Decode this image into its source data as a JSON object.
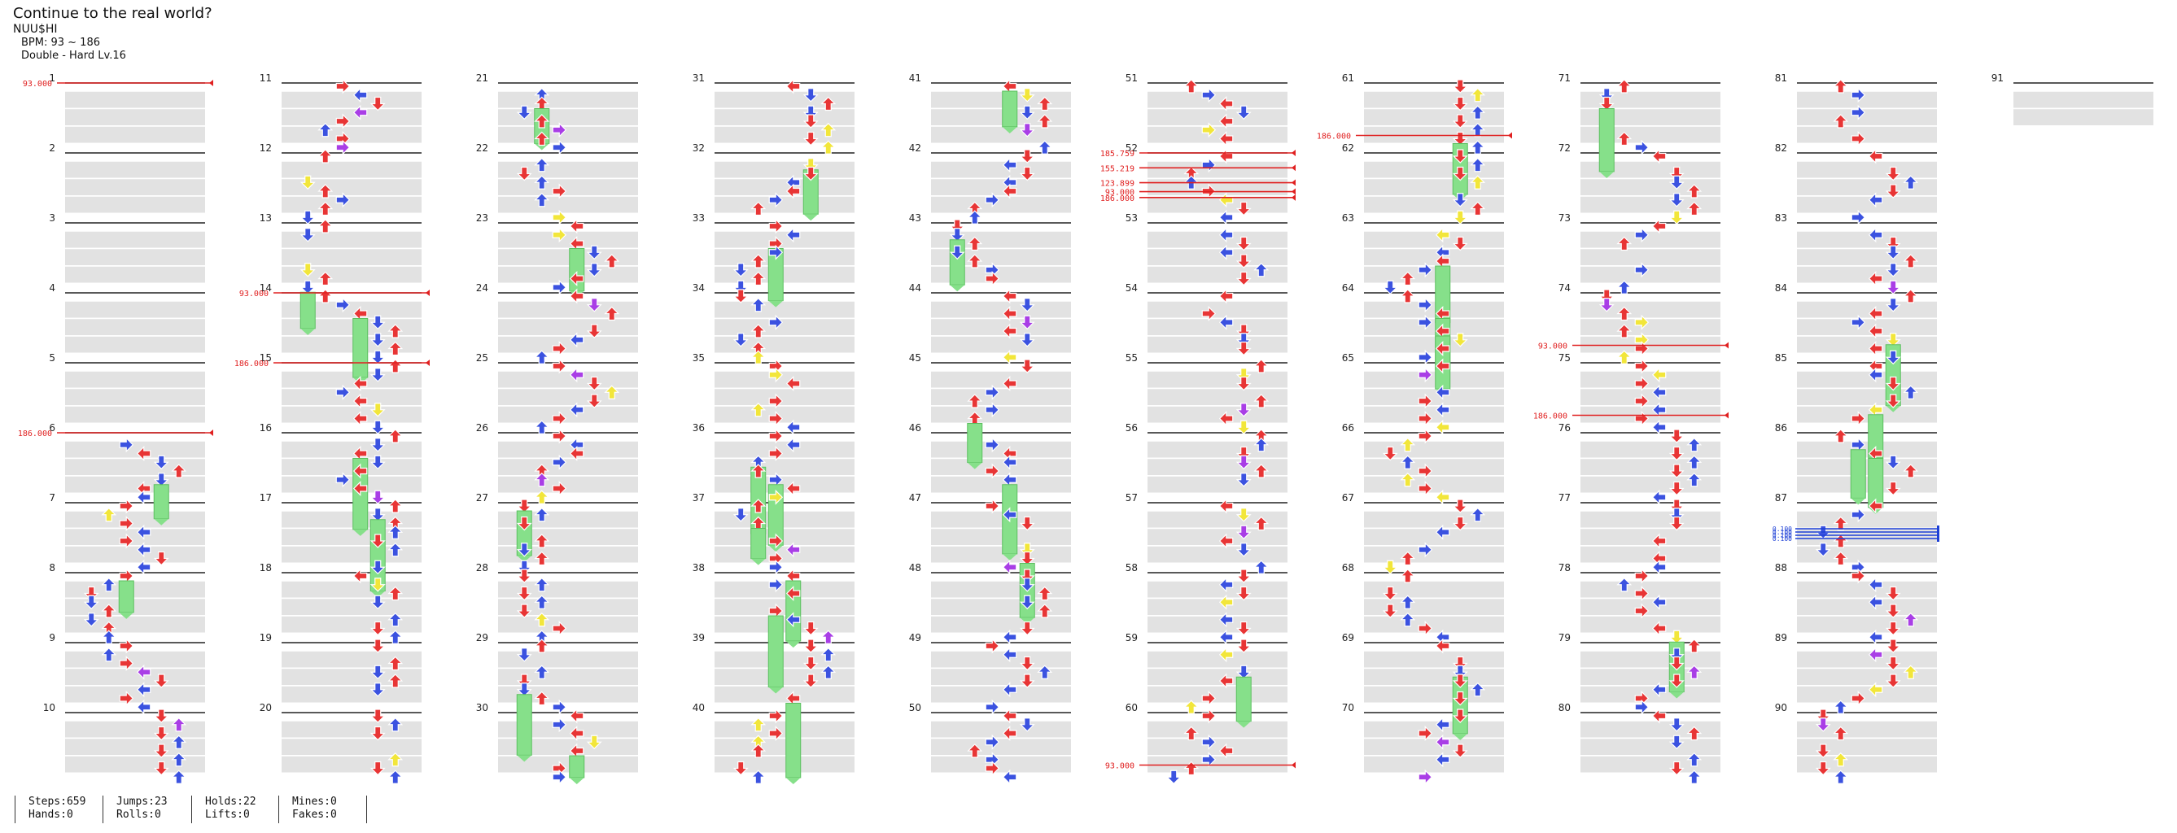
{
  "song": {
    "title": "Continue to the real world?",
    "artist": "NUU$HI",
    "bpm": "BPM: 93 ~ 186",
    "difficulty": "Double - Hard Lv.16"
  },
  "measure_numbers": [
    "1",
    "2",
    "3",
    "4",
    "5",
    "6",
    "7",
    "8",
    "9",
    "10",
    "11",
    "12",
    "13",
    "14",
    "15",
    "16",
    "17",
    "18",
    "19",
    "20",
    "21",
    "22",
    "23",
    "24",
    "25",
    "26",
    "27",
    "28",
    "29",
    "30",
    "31",
    "32",
    "33",
    "34",
    "35",
    "36",
    "37",
    "38",
    "39",
    "40",
    "41",
    "42",
    "43",
    "44",
    "45",
    "46",
    "47",
    "48",
    "49",
    "50",
    "51",
    "52",
    "53",
    "54",
    "55",
    "56",
    "57",
    "58",
    "59",
    "60",
    "61",
    "62",
    "63",
    "64",
    "65",
    "66",
    "67",
    "68",
    "69",
    "70",
    "71",
    "72",
    "73",
    "74",
    "75",
    "76",
    "77",
    "78",
    "79",
    "80",
    "81",
    "82",
    "83",
    "84",
    "85",
    "86",
    "87",
    "88",
    "89",
    "90",
    "91"
  ],
  "bpm_changes": [
    {
      "label": "93.000",
      "column": 1,
      "measure": 1,
      "offset": 0
    },
    {
      "label": "186.000",
      "column": 1,
      "measure": 6,
      "offset": 0
    },
    {
      "label": "93.000",
      "column": 2,
      "measure": 4,
      "offset": 0
    },
    {
      "label": "186.000",
      "column": 2,
      "measure": 5,
      "offset": 0
    },
    {
      "label": "185.759",
      "column": 6,
      "measure": 2,
      "offset": 0
    },
    {
      "label": "155.219",
      "column": 6,
      "measure": 2,
      "offset": 0.25
    },
    {
      "label": "123.899",
      "column": 6,
      "measure": 2,
      "offset": 0.5
    },
    {
      "label": "93.000",
      "column": 6,
      "measure": 2,
      "offset": 0.65
    },
    {
      "label": "186.000",
      "column": 6,
      "measure": 2,
      "offset": 0.75
    },
    {
      "label": "93.000",
      "column": 6,
      "measure": 10,
      "offset": 0.75
    },
    {
      "label": "186.000",
      "column": 7,
      "measure": 1,
      "offset": 0.75
    },
    {
      "label": "93.000",
      "column": 8,
      "measure": 4,
      "offset": 0.75
    },
    {
      "label": "186.000",
      "column": 8,
      "measure": 5,
      "offset": 0.75
    }
  ],
  "stops_label": "0.100",
  "arrow_colors": {
    "red": "#e83535",
    "blue": "#3b52e0",
    "yellow": "#f2e63a",
    "purple": "#a93ee6",
    "hold": "#86e08a"
  },
  "stats": {
    "steps": "Steps:659",
    "hands": "Hands:0",
    "jumps": "Jumps:23",
    "rolls": "Rolls:0",
    "holds": "Holds:22",
    "lifts": "Lifts:0",
    "mines": "Mines:0",
    "fakes": "Fakes:0"
  }
}
